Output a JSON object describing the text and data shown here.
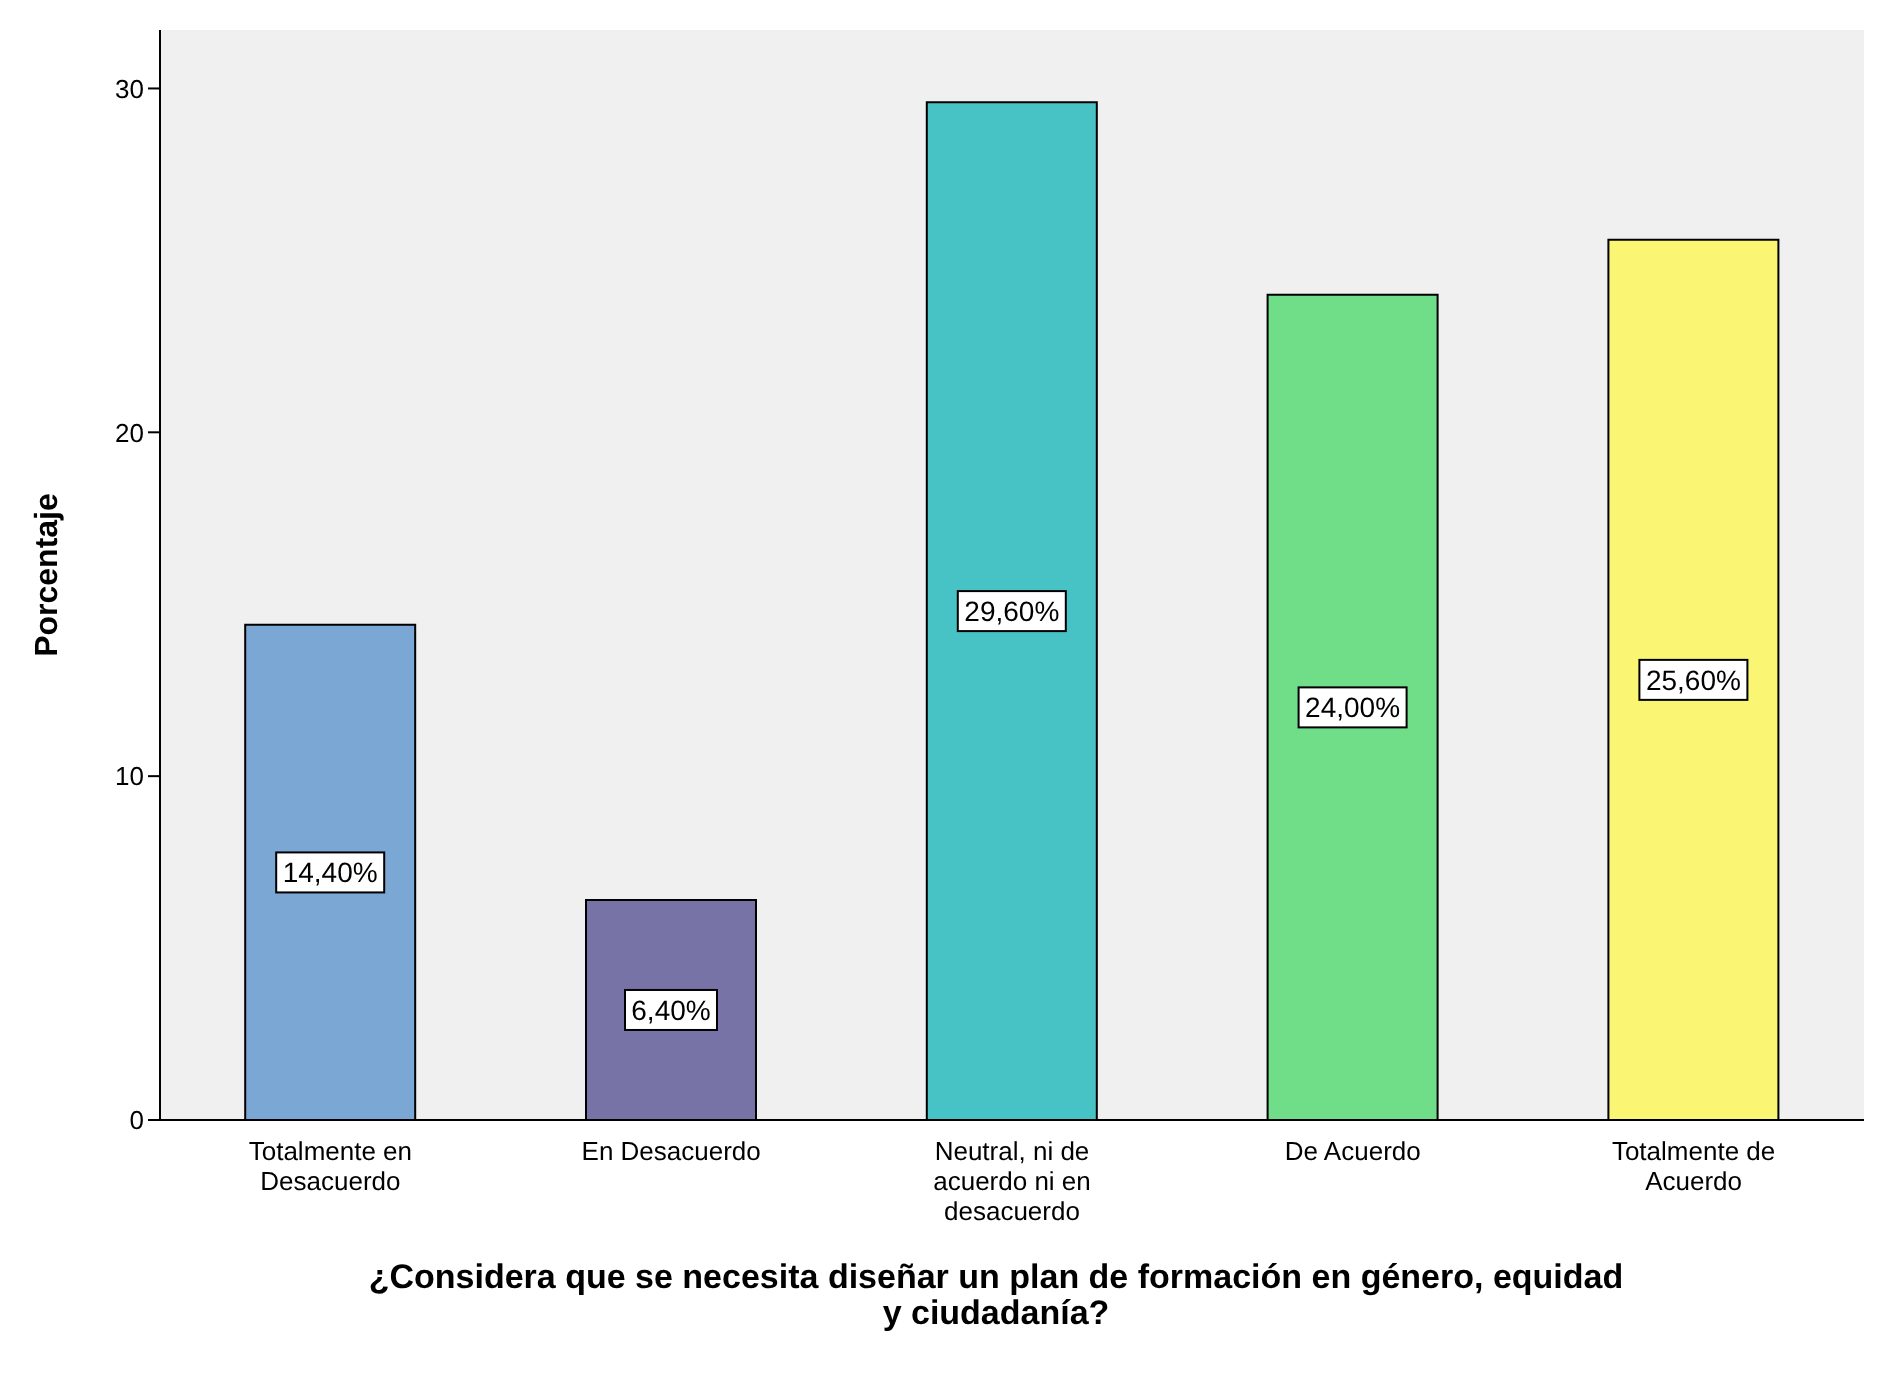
{
  "chart_data": {
    "type": "bar",
    "xlabel": "¿Considera que se necesita diseñar un plan de  formación en género, equidad y ciudadanía?",
    "ylabel": "Porcentaje",
    "categories": [
      "Totalmente en Desacuerdo",
      "En Desacuerdo",
      "Neutral, ni de acuerdo ni en desacuerdo",
      "De Acuerdo",
      "Totalmente de Acuerdo"
    ],
    "values": [
      14.4,
      6.4,
      29.6,
      24.0,
      25.6
    ],
    "value_labels": [
      "14,40%",
      "6,40%",
      "29,60%",
      "24,00%",
      "25,60%"
    ],
    "colors": [
      "#7ba7d4",
      "#7773a6",
      "#47c3c6",
      "#70dd88",
      "#faf673"
    ],
    "ylim": [
      0,
      31.7
    ],
    "yticks": [
      0,
      10,
      20,
      30
    ],
    "grid": false,
    "legend": false
  }
}
